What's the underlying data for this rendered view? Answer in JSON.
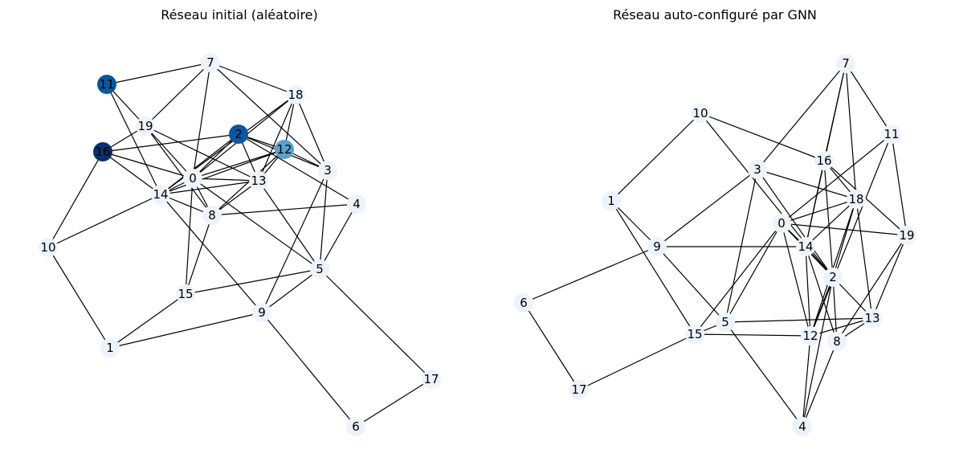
{
  "panels": [
    {
      "title": "Réseau initial (aléatoire)",
      "nodes": [
        {
          "id": "0",
          "value": 0.0
        },
        {
          "id": "1",
          "value": 0.0
        },
        {
          "id": "2",
          "value": 0.85
        },
        {
          "id": "3",
          "value": 0.0
        },
        {
          "id": "4",
          "value": 0.0
        },
        {
          "id": "5",
          "value": 0.0
        },
        {
          "id": "6",
          "value": 0.0
        },
        {
          "id": "7",
          "value": 0.0
        },
        {
          "id": "8",
          "value": 0.0
        },
        {
          "id": "9",
          "value": 0.0
        },
        {
          "id": "10",
          "value": 0.0
        },
        {
          "id": "11",
          "value": 0.85
        },
        {
          "id": "12",
          "value": 0.55
        },
        {
          "id": "13",
          "value": 0.0
        },
        {
          "id": "14",
          "value": 0.0
        },
        {
          "id": "15",
          "value": 0.0
        },
        {
          "id": "16",
          "value": 1.0
        },
        {
          "id": "17",
          "value": 0.0
        },
        {
          "id": "18",
          "value": 0.0
        },
        {
          "id": "19",
          "value": 0.0
        }
      ],
      "edges": [
        [
          "11",
          "7"
        ],
        [
          "11",
          "19"
        ],
        [
          "11",
          "14"
        ],
        [
          "7",
          "19"
        ],
        [
          "7",
          "18"
        ],
        [
          "7",
          "3"
        ],
        [
          "7",
          "0"
        ],
        [
          "19",
          "16"
        ],
        [
          "19",
          "0"
        ],
        [
          "19",
          "13"
        ],
        [
          "19",
          "8"
        ],
        [
          "16",
          "2"
        ],
        [
          "16",
          "14"
        ],
        [
          "16",
          "0"
        ],
        [
          "16",
          "10"
        ],
        [
          "2",
          "0"
        ],
        [
          "2",
          "13"
        ],
        [
          "2",
          "3"
        ],
        [
          "2",
          "4"
        ],
        [
          "2",
          "14"
        ],
        [
          "2",
          "12"
        ],
        [
          "12",
          "0"
        ],
        [
          "12",
          "14"
        ],
        [
          "12",
          "3"
        ],
        [
          "12",
          "13"
        ],
        [
          "12",
          "8"
        ],
        [
          "18",
          "0"
        ],
        [
          "18",
          "14"
        ],
        [
          "18",
          "13"
        ],
        [
          "18",
          "3"
        ],
        [
          "18",
          "12"
        ],
        [
          "0",
          "14"
        ],
        [
          "0",
          "8"
        ],
        [
          "0",
          "13"
        ],
        [
          "0",
          "15"
        ],
        [
          "0",
          "5"
        ],
        [
          "13",
          "14"
        ],
        [
          "13",
          "8"
        ],
        [
          "13",
          "5"
        ],
        [
          "3",
          "9"
        ],
        [
          "3",
          "5"
        ],
        [
          "14",
          "8"
        ],
        [
          "14",
          "10"
        ],
        [
          "14",
          "9"
        ],
        [
          "8",
          "4"
        ],
        [
          "8",
          "15"
        ],
        [
          "4",
          "5"
        ],
        [
          "5",
          "15"
        ],
        [
          "5",
          "9"
        ],
        [
          "5",
          "17"
        ],
        [
          "9",
          "1"
        ],
        [
          "9",
          "6"
        ],
        [
          "15",
          "1"
        ],
        [
          "10",
          "1"
        ],
        [
          "17",
          "6"
        ]
      ]
    },
    {
      "title": "Réseau auto-configuré par GNN",
      "nodes": [
        {
          "id": "0",
          "value": 0.0
        },
        {
          "id": "1",
          "value": 0.0
        },
        {
          "id": "2",
          "value": 0.0
        },
        {
          "id": "3",
          "value": 0.0
        },
        {
          "id": "4",
          "value": 0.0
        },
        {
          "id": "5",
          "value": 0.0
        },
        {
          "id": "6",
          "value": 0.0
        },
        {
          "id": "7",
          "value": 0.0
        },
        {
          "id": "8",
          "value": 0.0
        },
        {
          "id": "9",
          "value": 0.0
        },
        {
          "id": "10",
          "value": 0.0
        },
        {
          "id": "11",
          "value": 0.0
        },
        {
          "id": "12",
          "value": 0.0
        },
        {
          "id": "13",
          "value": 0.0
        },
        {
          "id": "14",
          "value": 0.0
        },
        {
          "id": "15",
          "value": 0.0
        },
        {
          "id": "16",
          "value": 0.0
        },
        {
          "id": "17",
          "value": 0.0
        },
        {
          "id": "18",
          "value": 0.0
        },
        {
          "id": "19",
          "value": 0.0
        }
      ],
      "edges": [
        [
          "10",
          "16"
        ],
        [
          "10",
          "1"
        ],
        [
          "10",
          "2"
        ],
        [
          "7",
          "3"
        ],
        [
          "7",
          "16"
        ],
        [
          "7",
          "11"
        ],
        [
          "7",
          "18"
        ],
        [
          "7",
          "14"
        ],
        [
          "11",
          "0"
        ],
        [
          "11",
          "19"
        ],
        [
          "11",
          "12"
        ],
        [
          "16",
          "18"
        ],
        [
          "16",
          "19"
        ],
        [
          "16",
          "2"
        ],
        [
          "16",
          "14"
        ],
        [
          "3",
          "18"
        ],
        [
          "3",
          "9"
        ],
        [
          "3",
          "5"
        ],
        [
          "3",
          "2"
        ],
        [
          "18",
          "0"
        ],
        [
          "18",
          "12"
        ],
        [
          "18",
          "13"
        ],
        [
          "18",
          "14"
        ],
        [
          "18",
          "2"
        ],
        [
          "0",
          "19"
        ],
        [
          "0",
          "14"
        ],
        [
          "0",
          "2"
        ],
        [
          "0",
          "5"
        ],
        [
          "0",
          "15"
        ],
        [
          "0",
          "12"
        ],
        [
          "1",
          "9"
        ],
        [
          "1",
          "15"
        ],
        [
          "9",
          "14"
        ],
        [
          "9",
          "5"
        ],
        [
          "9",
          "6"
        ],
        [
          "14",
          "2"
        ],
        [
          "14",
          "12"
        ],
        [
          "14",
          "8"
        ],
        [
          "2",
          "13"
        ],
        [
          "2",
          "12"
        ],
        [
          "2",
          "8"
        ],
        [
          "2",
          "4"
        ],
        [
          "19",
          "13"
        ],
        [
          "19",
          "8"
        ],
        [
          "5",
          "13"
        ],
        [
          "5",
          "4"
        ],
        [
          "5",
          "15"
        ],
        [
          "15",
          "12"
        ],
        [
          "15",
          "17"
        ],
        [
          "12",
          "13"
        ],
        [
          "12",
          "4"
        ],
        [
          "8",
          "13"
        ],
        [
          "8",
          "4"
        ],
        [
          "6",
          "17"
        ]
      ]
    }
  ]
}
